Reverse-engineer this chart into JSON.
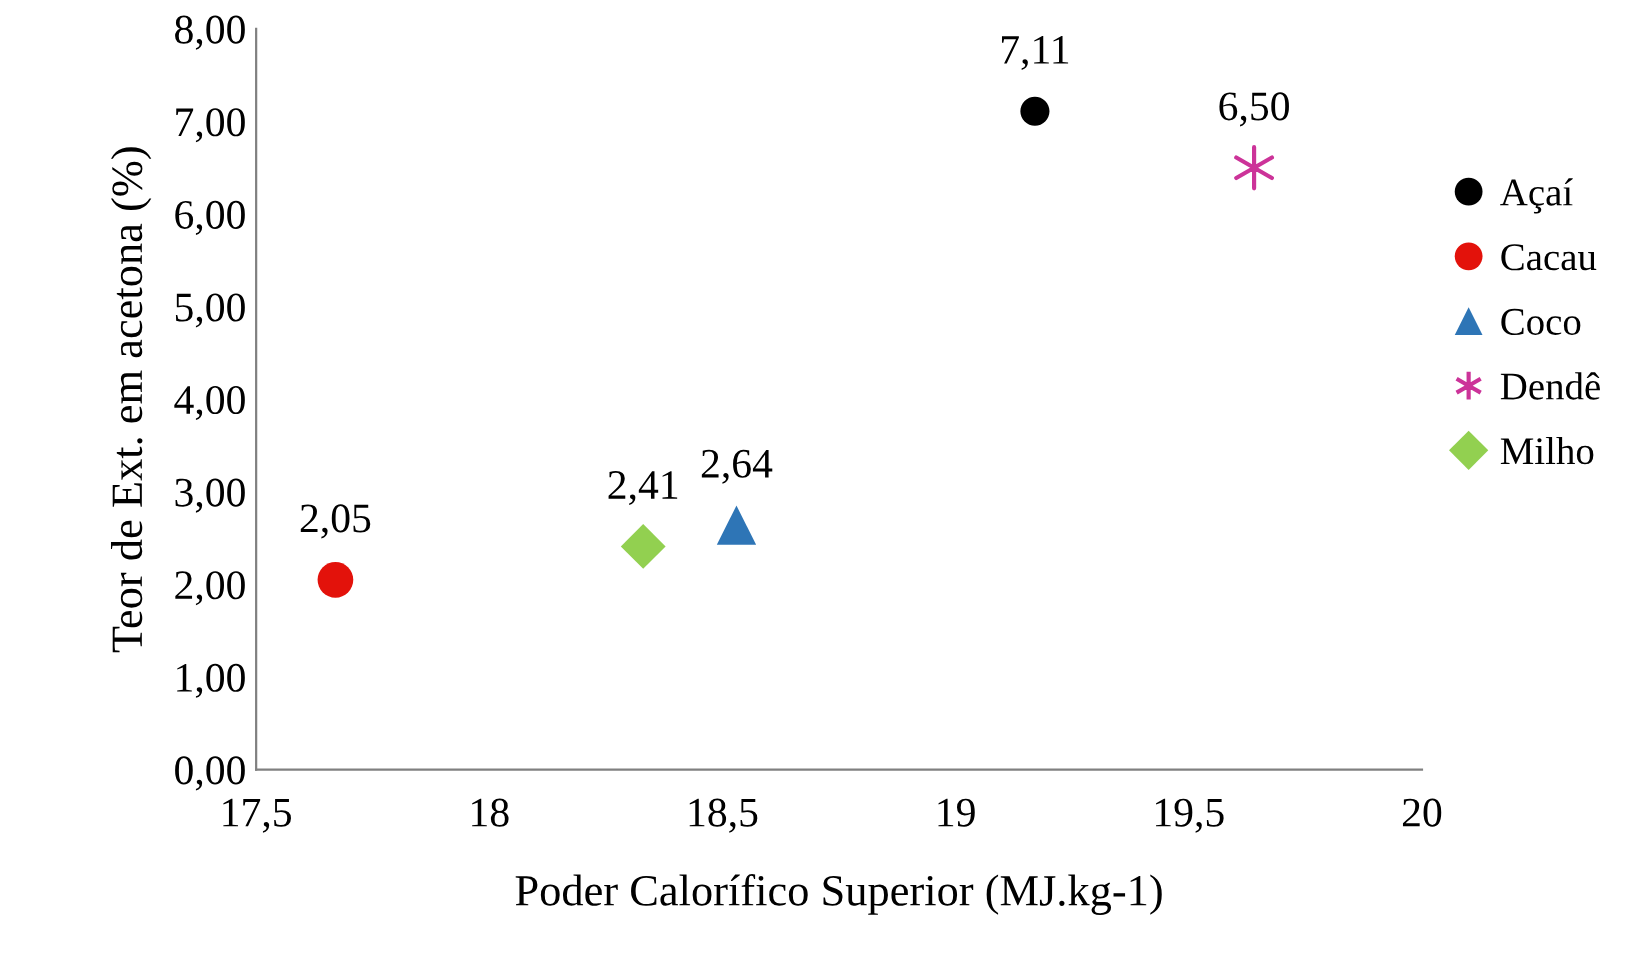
{
  "chart_data": {
    "type": "scatter",
    "xlabel": "Poder Calorífico Superior (MJ.kg-1)",
    "ylabel": "Teor de Ext. em acetona (%)",
    "series": [
      {
        "name": "Açaí",
        "color": "#000000",
        "marker": "circle",
        "x": [
          19.17
        ],
        "values": [
          7.11
        ],
        "value_labels": [
          "7,11"
        ]
      },
      {
        "name": "Cacau",
        "color": "#e3120b",
        "marker": "circle",
        "x": [
          17.67
        ],
        "values": [
          2.05
        ],
        "value_labels": [
          "2,05"
        ]
      },
      {
        "name": "Coco",
        "color": "#2e75b6",
        "marker": "triangle",
        "x": [
          18.53
        ],
        "values": [
          2.64
        ],
        "value_labels": [
          "2,64"
        ]
      },
      {
        "name": "Dendê",
        "color": "#cc3399",
        "marker": "cross",
        "x": [
          19.64
        ],
        "values": [
          6.5
        ],
        "value_labels": [
          "6,50"
        ]
      },
      {
        "name": "Milho",
        "color": "#92d050",
        "marker": "diamond",
        "x": [
          18.33
        ],
        "values": [
          2.41
        ],
        "value_labels": [
          "2,41"
        ]
      }
    ],
    "xlim": [
      17.5,
      20
    ],
    "xticks": [
      {
        "value": 17.5,
        "label": "17,5"
      },
      18,
      {
        "value": 18.5,
        "label": "18,5"
      },
      19,
      {
        "value": 19.5,
        "label": "19,5"
      },
      20
    ],
    "ylim": [
      0,
      8
    ],
    "yticks": [
      {
        "value": 0,
        "label": "0,00"
      },
      {
        "value": 1,
        "label": "1,00"
      },
      {
        "value": 2,
        "label": "2,00"
      },
      {
        "value": 3,
        "label": "3,00"
      },
      {
        "value": 4,
        "label": "4,00"
      },
      {
        "value": 5,
        "label": "5,00"
      },
      {
        "value": 6,
        "label": "6,00"
      },
      {
        "value": 7,
        "label": "7,00"
      },
      {
        "value": 8,
        "label": "8,00"
      }
    ],
    "legend": "right"
  }
}
